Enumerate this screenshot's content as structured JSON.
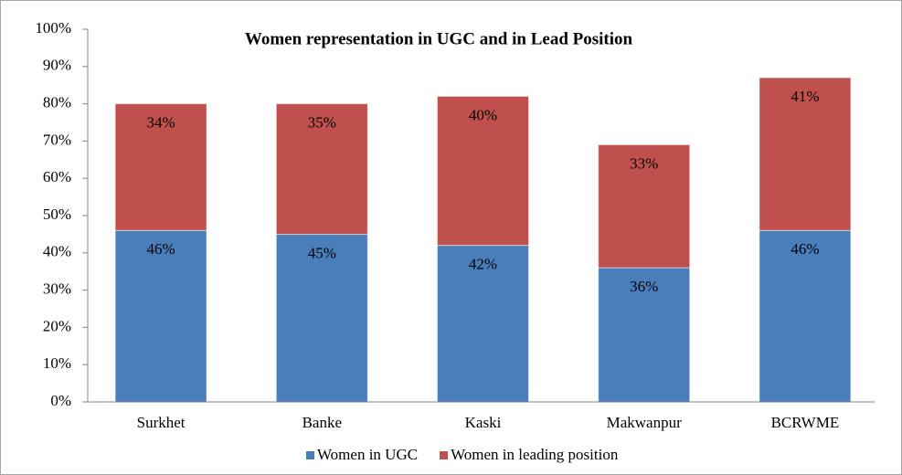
{
  "chart_data": {
    "type": "stacked_bar",
    "title": "Women representation in UGC and in Lead Position",
    "categories": [
      "Surkhet",
      "Banke",
      "Kaski",
      "Makwanpur",
      "BCRWME"
    ],
    "series": [
      {
        "name": "Women in UGC",
        "color": "#4a7ebb",
        "values": [
          46,
          45,
          42,
          36,
          46
        ],
        "value_labels": [
          "46%",
          "45%",
          "42%",
          "36%",
          "46%"
        ]
      },
      {
        "name": "Women in leading position",
        "color": "#c0504d",
        "values": [
          34,
          35,
          40,
          33,
          41
        ],
        "value_labels": [
          "34%",
          "35%",
          "40%",
          "33%",
          "41%"
        ]
      }
    ],
    "ylim": [
      0,
      100
    ],
    "yticks": [
      {
        "value": 0,
        "label": "0%"
      },
      {
        "value": 10,
        "label": "10%"
      },
      {
        "value": 20,
        "label": "20%"
      },
      {
        "value": 30,
        "label": "30%"
      },
      {
        "value": 40,
        "label": "40%"
      },
      {
        "value": 50,
        "label": "50%"
      },
      {
        "value": 60,
        "label": "60%"
      },
      {
        "value": 70,
        "label": "70%"
      },
      {
        "value": 80,
        "label": "80%"
      },
      {
        "value": 90,
        "label": "90%"
      },
      {
        "value": 100,
        "label": "100%"
      }
    ],
    "legend": "bottom"
  }
}
